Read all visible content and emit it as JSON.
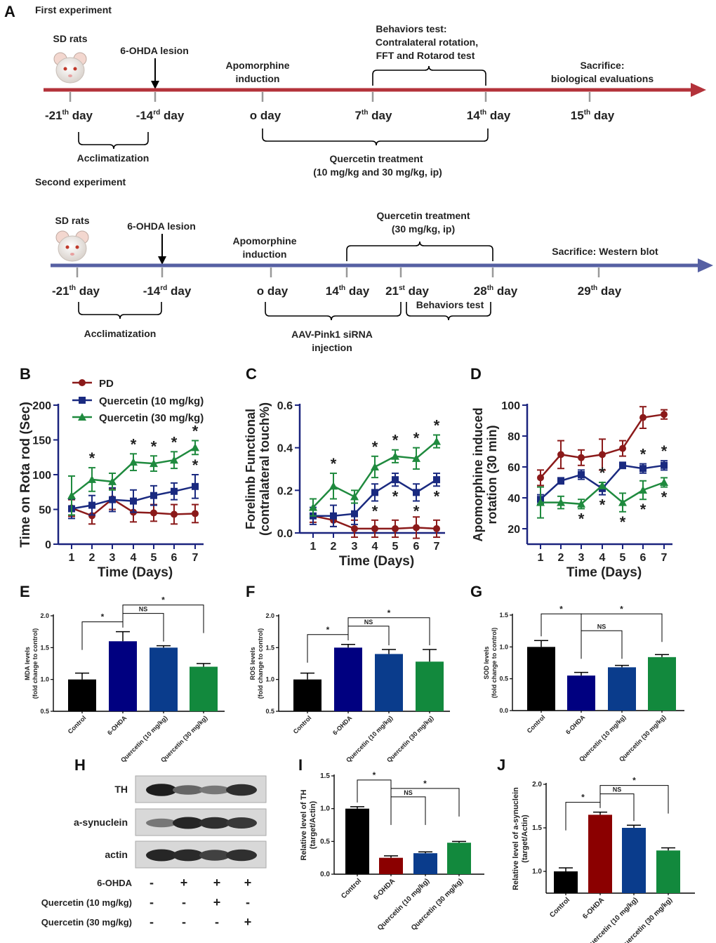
{
  "panels": [
    "A",
    "B",
    "C",
    "D",
    "E",
    "F",
    "G",
    "H",
    "I",
    "J"
  ],
  "timeline1": {
    "title": "First experiment",
    "sd_rats": "SD rats",
    "lesion": "6-OHDA lesion",
    "apomorphine": [
      "Apomorphine",
      "induction"
    ],
    "behaviors": [
      "Behaviors test:",
      "Contralateral rotation,",
      "FFT and Rotarod test"
    ],
    "sacrifice": [
      "Sacrifice:",
      "biological evaluations"
    ],
    "days": [
      {
        "main": "-21",
        "sup": "th",
        "rest": " day"
      },
      {
        "main": "-14",
        "sup": "rd",
        "rest": " day"
      },
      {
        "main": "o day",
        "sup": "",
        "rest": ""
      },
      {
        "main": "7",
        "sup": "th",
        "rest": " day"
      },
      {
        "main": "14",
        "sup": "th",
        "rest": " day"
      },
      {
        "main": "15",
        "sup": "th",
        "rest": " day"
      }
    ],
    "acclimatization": "Acclimatization",
    "treatment": [
      "Quercetin treatment",
      "(10 mg/kg and 30 mg/kg, ip)"
    ]
  },
  "timeline2": {
    "title": "Second experiment",
    "sd_rats": "SD rats",
    "lesion": "6-OHDA lesion",
    "apomorphine": [
      "Apomorphine",
      "induction"
    ],
    "treatment": [
      "Quercetin treatment",
      "(30 mg/kg, ip)"
    ],
    "sacrifice": "Sacrifice: Western blot",
    "days": [
      {
        "main": "-21",
        "sup": "th",
        "rest": " day"
      },
      {
        "main": "-14",
        "sup": "rd",
        "rest": " day"
      },
      {
        "main": "o day",
        "sup": "",
        "rest": ""
      },
      {
        "main": "14",
        "sup": "th",
        "rest": " day"
      },
      {
        "main": "21",
        "sup": "st",
        "rest": " day"
      },
      {
        "main": "28",
        "sup": "th",
        "rest": " day"
      },
      {
        "main": "29",
        "sup": "th",
        "rest": " day"
      }
    ],
    "behaviors": "Behaviors test",
    "acclimatization": "Acclimatization",
    "injection": [
      "AAV-Pink1 siRNA",
      "injection"
    ]
  },
  "colors": {
    "pd": "#8b1a1a",
    "q10": "#1a2a80",
    "q30": "#1f8a3e",
    "axis": "#1a237e",
    "black": "#000000",
    "navy": "#000080",
    "blue": "#0a3c8c",
    "green": "#12893d",
    "red": "#8b0000",
    "arrow1": "#b3323a",
    "arrow2": "#5660a3"
  },
  "chart_data": [
    {
      "id": "B",
      "type": "line",
      "ylabel": "Time on Rota rod (Sec)",
      "xlabel": "Time (Days)",
      "x": [
        1,
        2,
        3,
        4,
        5,
        6,
        7
      ],
      "ylim": [
        0,
        200
      ],
      "yticks": [
        0,
        50,
        100,
        150,
        200
      ],
      "legend": [
        "PD",
        "Quercetin (10 mg/kg)",
        "Quercetin (30 mg/kg)"
      ],
      "series": [
        {
          "name": "PD",
          "values": [
            52,
            41,
            65,
            46,
            45,
            43,
            44
          ],
          "err": [
            12,
            12,
            15,
            14,
            12,
            14,
            13
          ]
        },
        {
          "name": "Quercetin (10 mg/kg)",
          "values": [
            51,
            56,
            64,
            62,
            70,
            76,
            83
          ],
          "err": [
            14,
            14,
            17,
            16,
            14,
            12,
            17
          ]
        },
        {
          "name": "Quercetin (30 mg/kg)",
          "values": [
            70,
            93,
            90,
            118,
            116,
            121,
            139
          ],
          "err": [
            28,
            17,
            12,
            12,
            11,
            12,
            10
          ]
        }
      ],
      "stars": [
        {
          "x": 2,
          "series": 2,
          "offset": 1
        },
        {
          "x": 4,
          "series": 2,
          "offset": 1
        },
        {
          "x": 5,
          "series": 2,
          "offset": 1
        },
        {
          "x": 6,
          "series": 2,
          "offset": 1
        },
        {
          "x": 7,
          "series": 2,
          "offset": 1
        },
        {
          "x": 7,
          "series": 1,
          "offset": 1
        }
      ]
    },
    {
      "id": "C",
      "type": "line",
      "ylabel": "Forelimb Functional (contralateral touch%)",
      "xlabel": "Time (Days)",
      "x": [
        1,
        2,
        3,
        4,
        5,
        6,
        7
      ],
      "ylim": [
        0,
        0.6
      ],
      "yticks": [
        0.0,
        0.2,
        0.4,
        0.6
      ],
      "series": [
        {
          "name": "PD",
          "values": [
            0.08,
            0.06,
            0.02,
            0.02,
            0.02,
            0.025,
            0.02
          ],
          "err": [
            0.03,
            0.03,
            0.04,
            0.04,
            0.04,
            0.05,
            0.04
          ]
        },
        {
          "name": "Quercetin (10 mg/kg)",
          "values": [
            0.08,
            0.08,
            0.09,
            0.19,
            0.25,
            0.19,
            0.25
          ],
          "err": [
            0.04,
            0.05,
            0.05,
            0.04,
            0.03,
            0.04,
            0.03
          ]
        },
        {
          "name": "Quercetin (30 mg/kg)",
          "values": [
            0.12,
            0.22,
            0.17,
            0.31,
            0.36,
            0.35,
            0.43
          ],
          "err": [
            0.04,
            0.06,
            0.03,
            0.05,
            0.03,
            0.05,
            0.03
          ]
        }
      ],
      "stars": [
        {
          "x": 2,
          "series": 2,
          "offset": 1
        },
        {
          "x": 4,
          "series": 2,
          "offset": 1
        },
        {
          "x": 5,
          "series": 2,
          "offset": 1
        },
        {
          "x": 6,
          "series": 2,
          "offset": 1
        },
        {
          "x": 7,
          "series": 2,
          "offset": 1
        },
        {
          "x": 4,
          "series": 1,
          "offset": -1
        },
        {
          "x": 5,
          "series": 1,
          "offset": -1
        },
        {
          "x": 6,
          "series": 1,
          "offset": -1
        },
        {
          "x": 7,
          "series": 1,
          "offset": -1
        }
      ]
    },
    {
      "id": "D",
      "type": "line",
      "ylabel": "Apomorphine induced rotation (30 min)",
      "xlabel": "Time (Days)",
      "x": [
        1,
        2,
        3,
        4,
        5,
        6,
        7
      ],
      "ylim": [
        10,
        100
      ],
      "yticks": [
        20,
        40,
        60,
        80,
        100
      ],
      "series": [
        {
          "name": "PD",
          "values": [
            53,
            68,
            66,
            68,
            72,
            92,
            94
          ],
          "err": [
            5,
            9,
            5,
            10,
            5,
            7,
            3
          ]
        },
        {
          "name": "Quercetin (10 mg/kg)",
          "values": [
            39,
            51,
            55,
            46,
            61,
            59,
            61
          ],
          "err": [
            3,
            2,
            3,
            4,
            2,
            3,
            3
          ]
        },
        {
          "name": "Quercetin (30 mg/kg)",
          "values": [
            37,
            37,
            36,
            48,
            37,
            45,
            50
          ],
          "err": [
            10,
            4,
            3,
            2,
            6,
            6,
            3
          ]
        }
      ],
      "stars": [
        {
          "x": 3,
          "series": 2,
          "offset": -1
        },
        {
          "x": 4,
          "series": 1,
          "offset": 1
        },
        {
          "x": 4,
          "series": 1,
          "offset": -1
        },
        {
          "x": 5,
          "series": 2,
          "offset": -1
        },
        {
          "x": 6,
          "series": 1,
          "offset": 1
        },
        {
          "x": 6,
          "series": 2,
          "offset": -1
        },
        {
          "x": 7,
          "series": 1,
          "offset": 1
        },
        {
          "x": 7,
          "series": 2,
          "offset": -1
        }
      ]
    },
    {
      "id": "E",
      "type": "bar",
      "ylabel": [
        "MDA levels",
        "(fold change to control)"
      ],
      "categories": [
        "Control",
        "6-OHDA",
        "Quercetin (10 mg/kg)",
        "Quercetin (30 mg/kg)"
      ],
      "values": [
        1.0,
        1.6,
        1.5,
        1.2
      ],
      "err": [
        0.1,
        0.15,
        0.03,
        0.05
      ],
      "ylim": [
        0.5,
        2.0
      ],
      "yticks": [
        "0.5",
        "1.0",
        "1.5",
        "2.0"
      ],
      "colors": [
        "#000000",
        "#000080",
        "#0a3c8c",
        "#12893d"
      ],
      "brackets": [
        {
          "from": 0,
          "to": 1,
          "label": "*",
          "level": 0
        },
        {
          "from": 1,
          "to": 2,
          "label": "NS",
          "level": 1
        },
        {
          "from": 1,
          "to": 3,
          "label": "*",
          "level": 2
        }
      ]
    },
    {
      "id": "F",
      "type": "bar",
      "ylabel": [
        "ROS levels",
        "(fold change to control)"
      ],
      "categories": [
        "Control",
        "6-OHDA",
        "Quercetin (10 mg/kg)",
        "Quercetin (30 mg/kg)"
      ],
      "values": [
        1.0,
        1.5,
        1.4,
        1.28
      ],
      "err": [
        0.1,
        0.05,
        0.07,
        0.19
      ],
      "ylim": [
        0.5,
        2.0
      ],
      "yticks": [
        "0.5",
        "1.0",
        "1.5",
        "2.0"
      ],
      "colors": [
        "#000000",
        "#000080",
        "#0a3c8c",
        "#12893d"
      ],
      "brackets": [
        {
          "from": 0,
          "to": 1,
          "label": "*",
          "level": 0
        },
        {
          "from": 1,
          "to": 2,
          "label": "NS",
          "level": 1
        },
        {
          "from": 1,
          "to": 3,
          "label": "*",
          "level": 2
        }
      ]
    },
    {
      "id": "G",
      "type": "bar",
      "ylabel": [
        "SOD levels",
        "(fold change to control)"
      ],
      "categories": [
        "Control",
        "6-OHDA",
        "Quercetin (10 mg/kg)",
        "Quercetin (30 mg/kg)"
      ],
      "values": [
        1.0,
        0.55,
        0.68,
        0.84
      ],
      "err": [
        0.1,
        0.05,
        0.03,
        0.04
      ],
      "ylim": [
        0,
        1.5
      ],
      "yticks": [
        "0.0",
        "0.5",
        "1.0",
        "1.5"
      ],
      "colors": [
        "#000000",
        "#000080",
        "#0a3c8c",
        "#12893d"
      ],
      "brackets": [
        {
          "from": 0,
          "to": 1,
          "label": "*",
          "level": 2
        },
        {
          "from": 1,
          "to": 2,
          "label": "NS",
          "level": 0
        },
        {
          "from": 1,
          "to": 3,
          "label": "*",
          "level": 2
        }
      ]
    },
    {
      "id": "I",
      "type": "bar",
      "ylabel": [
        "Relative level of TH",
        "(target/Actin)"
      ],
      "categories": [
        "Control",
        "6-OHDA",
        "Quercetin (10 mg/kg)",
        "Quercetin (30 mg/kg)"
      ],
      "values": [
        1.0,
        0.25,
        0.32,
        0.48
      ],
      "err": [
        0.03,
        0.03,
        0.02,
        0.02
      ],
      "ylim": [
        0,
        1.5
      ],
      "yticks": [
        "0.0",
        "0.5",
        "1.0",
        "1.5"
      ],
      "colors": [
        "#000000",
        "#8b0000",
        "#0a3c8c",
        "#12893d"
      ],
      "brackets": [
        {
          "from": 0,
          "to": 1,
          "label": "*",
          "level": 2
        },
        {
          "from": 1,
          "to": 2,
          "label": "NS",
          "level": 0
        },
        {
          "from": 1,
          "to": 3,
          "label": "*",
          "level": 1
        }
      ]
    },
    {
      "id": "J",
      "type": "bar",
      "ylabel": [
        "Relative level of a-synuclein",
        "(target/Actin)"
      ],
      "categories": [
        "Control",
        "6-OHDA",
        "Quercetin (10 mg/kg)",
        "Quercetin (30 mg/kg)"
      ],
      "values": [
        1.0,
        1.65,
        1.5,
        1.24
      ],
      "err": [
        0.04,
        0.03,
        0.03,
        0.03
      ],
      "ylim": [
        0.75,
        2.0
      ],
      "yticks": [
        "1.0",
        "1.5",
        "2.0"
      ],
      "colors": [
        "#000000",
        "#8b0000",
        "#0a3c8c",
        "#12893d"
      ],
      "brackets": [
        {
          "from": 0,
          "to": 1,
          "label": "*",
          "level": 0
        },
        {
          "from": 1,
          "to": 2,
          "label": "NS",
          "level": 1
        },
        {
          "from": 1,
          "to": 3,
          "label": "*",
          "level": 2
        }
      ]
    }
  ],
  "blot": {
    "labels": [
      "TH",
      "a-synuclein",
      "actin"
    ],
    "intensities": [
      [
        0.95,
        0.55,
        0.45,
        0.85
      ],
      [
        0.45,
        0.9,
        0.85,
        0.8
      ],
      [
        0.9,
        0.88,
        0.75,
        0.85
      ]
    ],
    "rows": [
      {
        "label": "6-OHDA",
        "marks": [
          "-",
          "+",
          "+",
          "+"
        ]
      },
      {
        "label": "Quercetin (10 mg/kg)",
        "marks": [
          "-",
          "-",
          "+",
          "-"
        ]
      },
      {
        "label": "Quercetin (30 mg/kg)",
        "marks": [
          "-",
          "-",
          "-",
          "+"
        ]
      }
    ]
  }
}
